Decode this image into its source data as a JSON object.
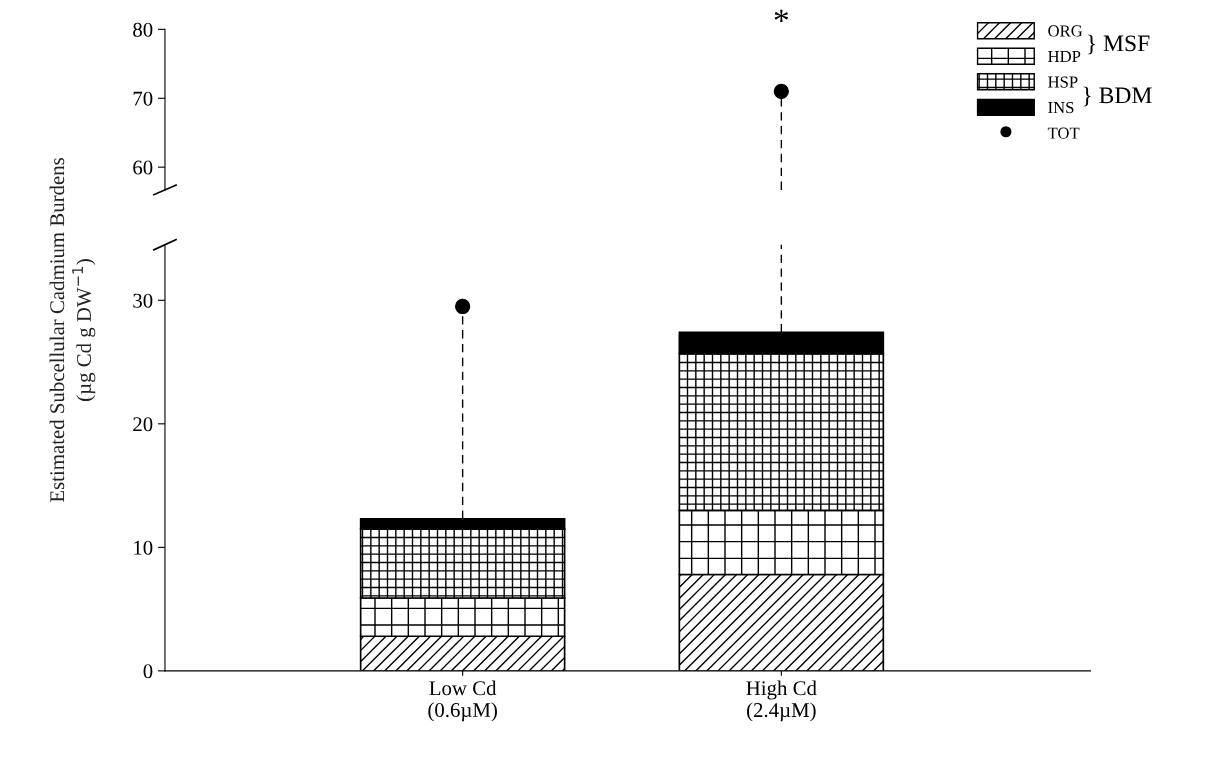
{
  "chart_data": [
    {
      "type": "scatter",
      "categories": [
        "Low Cd\n(0.6µM)",
        "High Cd\n(2.4µM)"
      ],
      "ylim": [
        56.7,
        80
      ],
      "yticks": [
        60,
        70,
        80
      ],
      "tick_labels": "y",
      "series": [
        {
          "name": "TOT",
          "color": "#000000",
          "values": [
            null,
            71.0
          ],
          "errors": [
            null,
            [
              56.7,
              71.0
            ]
          ],
          "marker": "circle",
          "line_style": "dashed"
        }
      ],
      "annotations": [
        {
          "text": "*",
          "x": "High Cd\n(2.4µM)",
          "y": 71.0
        }
      ]
    },
    {
      "type": "bar",
      "stacked": true,
      "categories": [
        "Low Cd\n(0.6µM)",
        "High Cd\n(2.4µM)"
      ],
      "ylim": [
        0,
        34.5
      ],
      "yticks": [
        0,
        10,
        20,
        30
      ],
      "ylabel": "Estimated Subcellular Cadmium Burdens\n(µg Cd g DW$^{−1}$)",
      "legend": "top right",
      "series": [
        {
          "name": "ORG",
          "color": "#000000",
          "values": [
            2.8,
            7.8
          ]
        },
        {
          "name": "HDP",
          "color": "#000000",
          "values": [
            3.1,
            5.2
          ]
        },
        {
          "name": "HSP",
          "color": "#000000",
          "values": [
            5.6,
            12.7
          ]
        },
        {
          "name": "INS",
          "color": "#000000",
          "values": [
            0.8,
            1.7
          ]
        },
        {
          "name": "TOT",
          "type": "scatter",
          "color": "#000000",
          "values": [
            29.5,
            null
          ],
          "errors": [
            [
              12.3,
              29.5
            ],
            null
          ],
          "marker": "circle",
          "line_style": "dashed"
        }
      ],
      "annotations": [
        "} MSF",
        "} BDM"
      ]
    }
  ]
}
